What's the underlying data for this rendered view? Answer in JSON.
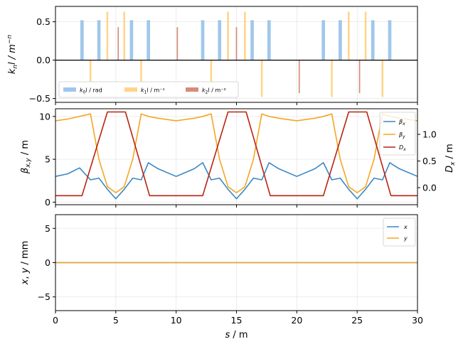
{
  "chart_data": [
    {
      "type": "bar",
      "panel": "magnets",
      "ylabel": "k_n l / m^-n",
      "xlim": [
        0,
        30
      ],
      "ylim": [
        -0.55,
        0.7
      ],
      "yticks": [
        -0.5,
        0.0,
        0.5
      ],
      "yticklabels": [
        "−0.5",
        "0.0",
        "0.5"
      ],
      "legend": "lower-left",
      "colors": {
        "k0": "#a0c7eb",
        "k1": "#ffd48a",
        "k2": "#d58c7c"
      },
      "series": [
        {
          "name": "k0l / rad",
          "key": "k0",
          "width": 0.55,
          "x": [
            2.2,
            3.6,
            6.3,
            7.7,
            12.2,
            13.6,
            16.3,
            17.7,
            22.2,
            23.6,
            26.3,
            27.7
          ],
          "values": [
            0.52,
            0.52,
            0.52,
            0.52,
            0.52,
            0.52,
            0.52,
            0.52,
            0.52,
            0.52,
            0.52,
            0.52
          ]
        },
        {
          "name": "k1l / m^-1",
          "key": "k1",
          "width": 0.3,
          "x": [
            2.9,
            4.3,
            5.7,
            7.1,
            12.9,
            14.3,
            15.7,
            17.1,
            22.9,
            24.3,
            25.7,
            27.1
          ],
          "values": [
            -0.28,
            0.63,
            0.63,
            -0.28,
            -0.28,
            0.63,
            0.63,
            -0.48,
            -0.48,
            0.63,
            0.63,
            -0.48
          ]
        },
        {
          "name": "k2l / m^-2",
          "key": "k2",
          "width": 0.2,
          "x": [
            5.2,
            10.1,
            15.0,
            20.2,
            25.2
          ],
          "values": [
            0.43,
            0.43,
            0.43,
            -0.43,
            -0.43
          ]
        }
      ]
    },
    {
      "type": "line",
      "panel": "optics",
      "ylabel": "β_x,y / m",
      "y2label": "D_x / m",
      "xlim": [
        0,
        30
      ],
      "ylim": [
        -0.3,
        10.9
      ],
      "y2lim": [
        -0.32,
        1.48
      ],
      "yticks": [
        0,
        5,
        10
      ],
      "yticklabels": [
        "0",
        "5",
        "10"
      ],
      "y2ticks": [
        0.0,
        0.5,
        1.0
      ],
      "y2ticklabels": [
        "0.0",
        "0.5",
        "1.0"
      ],
      "legend": "upper-right",
      "series": [
        {
          "name": "β_x",
          "axis": "left",
          "color": "#3a88c5",
          "x": [
            0,
            1.0,
            2.0,
            2.9,
            3.6,
            4.3,
            5.0,
            5.7,
            6.4,
            7.1,
            7.7,
            8.5,
            10.0,
            11.5,
            12.2,
            12.9,
            13.6,
            14.3,
            15.0,
            15.7,
            16.4,
            17.1,
            17.7,
            18.5,
            20.0,
            21.5,
            22.2,
            22.9,
            23.6,
            24.3,
            25.0,
            25.7,
            26.4,
            27.1,
            27.7,
            28.5,
            30.0
          ],
          "values": [
            3.0,
            3.3,
            4.0,
            2.6,
            2.8,
            1.5,
            0.4,
            1.5,
            2.8,
            2.6,
            4.6,
            3.9,
            3.0,
            3.9,
            4.6,
            2.6,
            2.8,
            1.5,
            0.4,
            1.5,
            2.8,
            2.6,
            4.6,
            3.9,
            3.0,
            3.9,
            4.6,
            2.6,
            2.8,
            1.5,
            0.4,
            1.5,
            2.8,
            2.6,
            4.6,
            3.9,
            3.0
          ]
        },
        {
          "name": "β_y",
          "axis": "left",
          "color": "#f5a623",
          "x": [
            0,
            1.0,
            2.0,
            2.9,
            3.6,
            4.3,
            5.0,
            5.7,
            6.4,
            7.1,
            7.7,
            8.5,
            10.0,
            11.5,
            12.2,
            12.9,
            13.6,
            14.3,
            15.0,
            15.7,
            16.4,
            17.1,
            17.7,
            18.5,
            20.0,
            21.5,
            22.2,
            22.9,
            23.6,
            24.3,
            25.0,
            25.7,
            26.4,
            27.1,
            27.7,
            28.5,
            30.0
          ],
          "values": [
            9.5,
            9.7,
            10.0,
            10.3,
            5.0,
            1.8,
            1.1,
            1.8,
            5.0,
            10.3,
            10.0,
            9.8,
            9.5,
            9.8,
            10.0,
            10.3,
            5.0,
            1.8,
            1.1,
            1.8,
            5.0,
            10.3,
            10.0,
            9.8,
            9.5,
            9.8,
            10.0,
            10.3,
            5.0,
            1.8,
            1.1,
            1.8,
            5.0,
            10.3,
            10.0,
            9.8,
            9.5
          ]
        },
        {
          "name": "D_x",
          "axis": "right",
          "color": "#b82410",
          "x": [
            0,
            2.2,
            4.3,
            5.8,
            7.8,
            12.2,
            14.3,
            15.8,
            17.8,
            22.2,
            24.3,
            25.8,
            27.8,
            30.0
          ],
          "values": [
            -0.15,
            -0.15,
            1.42,
            1.42,
            -0.15,
            -0.15,
            1.42,
            1.42,
            -0.15,
            -0.15,
            1.42,
            1.42,
            -0.15,
            -0.15
          ]
        }
      ]
    },
    {
      "type": "line",
      "panel": "orbit",
      "xlabel": "s / m",
      "ylabel": "x, y / mm",
      "xlim": [
        0,
        30
      ],
      "ylim": [
        -7,
        7
      ],
      "xticks": [
        0,
        5,
        10,
        15,
        20,
        25,
        30
      ],
      "xticklabels": [
        "0",
        "5",
        "10",
        "15",
        "20",
        "25",
        "30"
      ],
      "yticks": [
        -5,
        0,
        5
      ],
      "yticklabels": [
        "−5",
        "0",
        "5"
      ],
      "legend": "upper-right",
      "series": [
        {
          "name": "x",
          "color": "#3a88c5",
          "x": [
            0,
            30
          ],
          "values": [
            0,
            0
          ]
        },
        {
          "name": "y",
          "color": "#f5a623",
          "x": [
            0,
            30
          ],
          "values": [
            0,
            0
          ]
        }
      ]
    }
  ]
}
